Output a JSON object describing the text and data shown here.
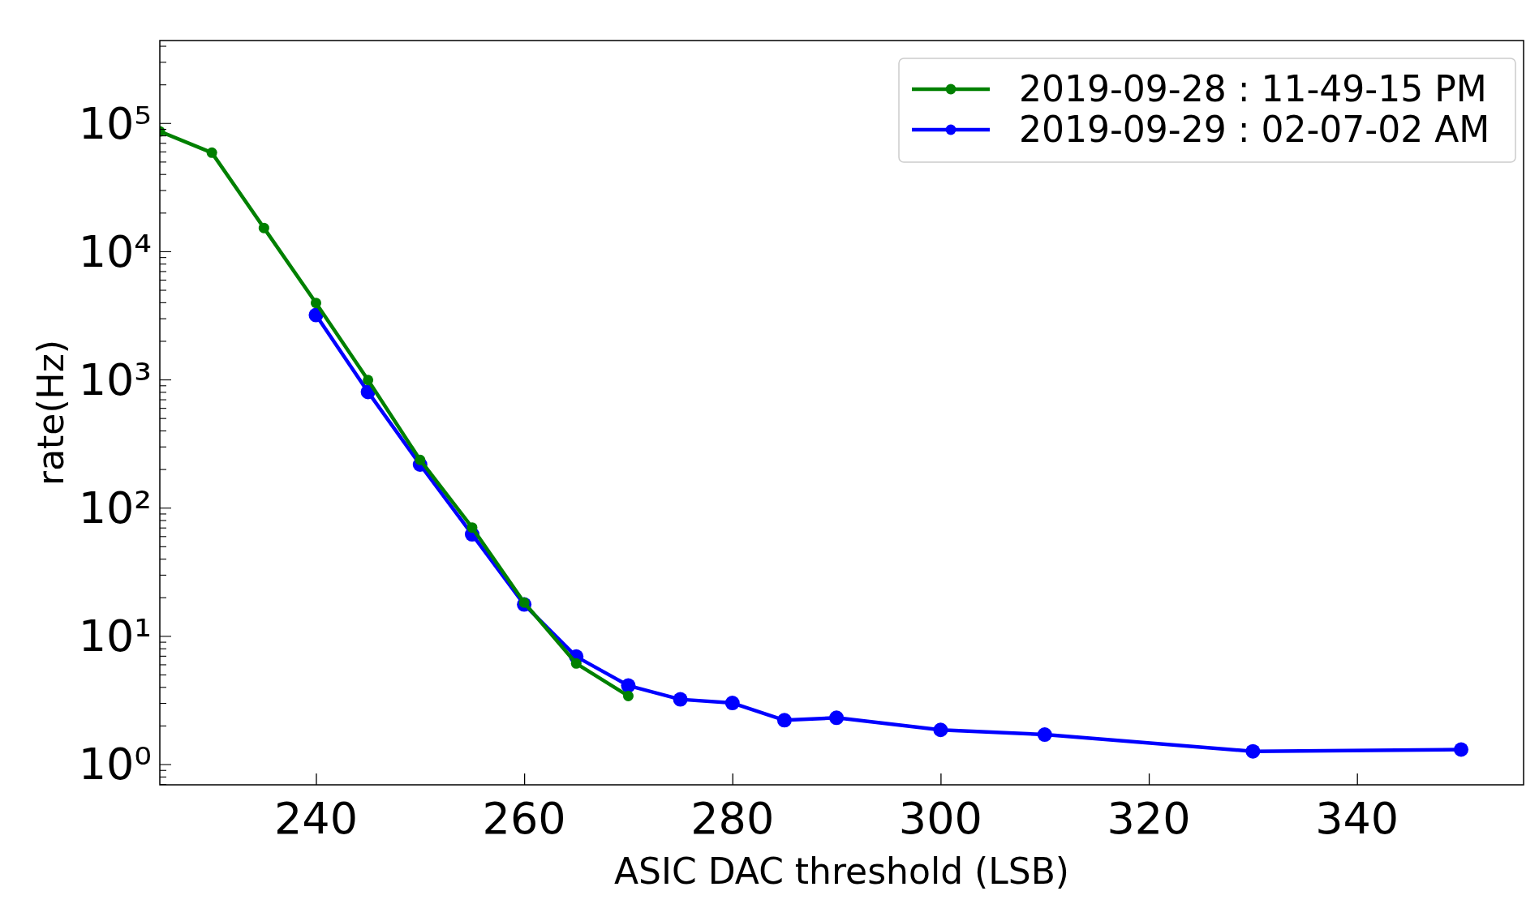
{
  "chart_data": {
    "type": "line",
    "xlabel": "ASIC DAC threshold (LSB)",
    "ylabel": "rate(Hz)",
    "log": "y",
    "xlim": [
      225,
      356
    ],
    "xticks": [
      240,
      260,
      280,
      300,
      320,
      340
    ],
    "ylim": [
      0.69,
      440000
    ],
    "yticks": [
      {
        "value": 0.7,
        "label": null
      },
      {
        "value": 0.8,
        "label": null
      },
      {
        "value": 0.9,
        "label": null
      },
      {
        "value": 1,
        "label": "10⁰"
      },
      {
        "value": 2,
        "label": null
      },
      {
        "value": 3,
        "label": null
      },
      {
        "value": 4,
        "label": null
      },
      {
        "value": 5,
        "label": null
      },
      {
        "value": 6,
        "label": null
      },
      {
        "value": 7,
        "label": null
      },
      {
        "value": 8,
        "label": null
      },
      {
        "value": 9,
        "label": null
      },
      {
        "value": 10,
        "label": "10¹"
      },
      {
        "value": 20,
        "label": null
      },
      {
        "value": 30,
        "label": null
      },
      {
        "value": 40,
        "label": null
      },
      {
        "value": 50,
        "label": null
      },
      {
        "value": 60,
        "label": null
      },
      {
        "value": 70,
        "label": null
      },
      {
        "value": 80,
        "label": null
      },
      {
        "value": 90,
        "label": null
      },
      {
        "value": 100,
        "label": "10²"
      },
      {
        "value": 200,
        "label": null
      },
      {
        "value": 300,
        "label": null
      },
      {
        "value": 400,
        "label": null
      },
      {
        "value": 500,
        "label": null
      },
      {
        "value": 600,
        "label": null
      },
      {
        "value": 700,
        "label": null
      },
      {
        "value": 800,
        "label": null
      },
      {
        "value": 900,
        "label": null
      },
      {
        "value": 1000,
        "label": "10³"
      },
      {
        "value": 2000,
        "label": null
      },
      {
        "value": 3000,
        "label": null
      },
      {
        "value": 4000,
        "label": null
      },
      {
        "value": 5000,
        "label": null
      },
      {
        "value": 6000,
        "label": null
      },
      {
        "value": 7000,
        "label": null
      },
      {
        "value": 8000,
        "label": null
      },
      {
        "value": 9000,
        "label": null
      },
      {
        "value": 10000,
        "label": "10⁴"
      },
      {
        "value": 20000,
        "label": null
      },
      {
        "value": 30000,
        "label": null
      },
      {
        "value": 40000,
        "label": null
      },
      {
        "value": 50000,
        "label": null
      },
      {
        "value": 60000,
        "label": null
      },
      {
        "value": 70000,
        "label": null
      },
      {
        "value": 80000,
        "label": null
      },
      {
        "value": 90000,
        "label": null
      },
      {
        "value": 100000,
        "label": "10⁵"
      },
      {
        "value": 200000,
        "label": null
      },
      {
        "value": 300000,
        "label": null
      },
      {
        "value": 400000,
        "label": null
      }
    ],
    "grid": false,
    "legend": "top right",
    "marker": "circle",
    "line_style": "solid",
    "series": [
      {
        "name": "2019-09-28 : 11-49-15 PM",
        "color": "#008000",
        "x": [
          225,
          230,
          235,
          240,
          245,
          250,
          255,
          260,
          265,
          270
        ],
        "values": [
          86000,
          58700,
          15200,
          3950,
          990,
          236,
          70,
          18.2,
          6.1,
          3.4
        ]
      },
      {
        "name": "2019-09-29 : 02-07-02 AM",
        "color": "#0000ff",
        "x": [
          240,
          245,
          250,
          255,
          260,
          265,
          270,
          275,
          280,
          285,
          290,
          300,
          310,
          330,
          350
        ],
        "values": [
          3180,
          800,
          217,
          62,
          17.6,
          6.9,
          4.1,
          3.2,
          3.0,
          2.2,
          2.3,
          1.85,
          1.7,
          1.26,
          1.3
        ]
      }
    ]
  }
}
